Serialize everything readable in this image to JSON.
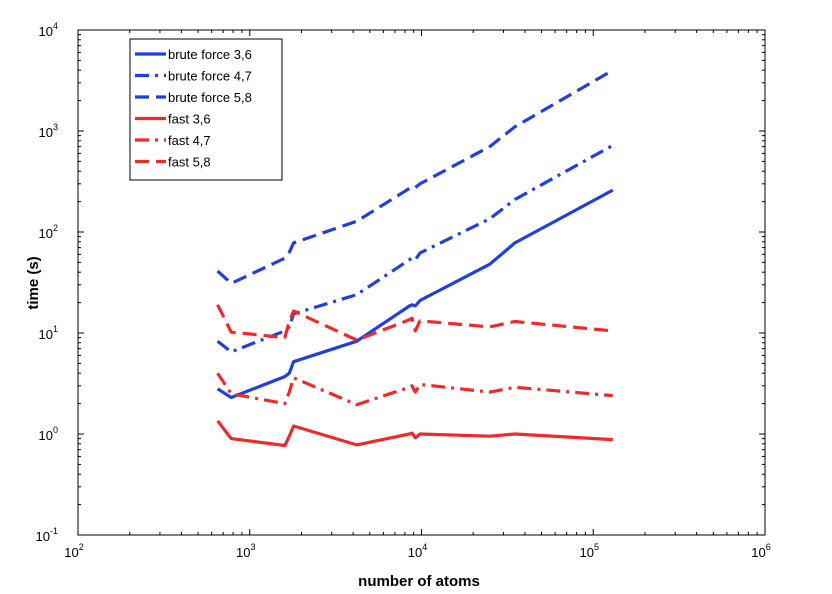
{
  "chart_data": {
    "type": "line",
    "title": "",
    "xlabel": "number of atoms",
    "ylabel": "time (s)",
    "xscale": "log",
    "yscale": "log",
    "xlim": [
      100,
      1000000
    ],
    "ylim": [
      0.1,
      10000
    ],
    "x_ticks": [
      {
        "value": 100,
        "base": "10",
        "exp": "2"
      },
      {
        "value": 1000,
        "base": "10",
        "exp": "3"
      },
      {
        "value": 10000,
        "base": "10",
        "exp": "4"
      },
      {
        "value": 100000,
        "base": "10",
        "exp": "5"
      },
      {
        "value": 1000000,
        "base": "10",
        "exp": "6"
      }
    ],
    "y_ticks": [
      {
        "value": 0.1,
        "base": "10",
        "exp": "-1"
      },
      {
        "value": 1,
        "base": "10",
        "exp": "0"
      },
      {
        "value": 10,
        "base": "10",
        "exp": "1"
      },
      {
        "value": 100,
        "base": "10",
        "exp": "2"
      },
      {
        "value": 1000,
        "base": "10",
        "exp": "3"
      },
      {
        "value": 10000,
        "base": "10",
        "exp": "4"
      }
    ],
    "grid": false,
    "legend_position": "top-left",
    "series": [
      {
        "name": "brute force 3,6",
        "color": "#1f3fe0",
        "dash": "solid",
        "x": [
          650,
          780,
          1600,
          1700,
          1800,
          4200,
          8500,
          8800,
          9200,
          9800,
          25000,
          35000,
          130000
        ],
        "y": [
          2.8,
          2.3,
          3.7,
          4.0,
          5.2,
          8.3,
          18.5,
          19.0,
          18.5,
          21.0,
          48,
          78,
          260
        ]
      },
      {
        "name": "brute force 4,7",
        "color": "#1f3fe0",
        "dash": "dashdot",
        "x": [
          650,
          780,
          1600,
          1700,
          1800,
          4200,
          8500,
          8800,
          9200,
          9800,
          25000,
          35000,
          130000
        ],
        "y": [
          8.3,
          6.5,
          10.5,
          11.5,
          15.5,
          24,
          53,
          55,
          53,
          62,
          135,
          210,
          720
        ]
      },
      {
        "name": "brute force 5,8",
        "color": "#1f3fe0",
        "dash": "dash",
        "x": [
          650,
          780,
          1600,
          1700,
          1800,
          4200,
          8500,
          8800,
          9200,
          9800,
          25000,
          35000,
          130000
        ],
        "y": [
          41,
          31,
          55,
          63,
          78,
          128,
          270,
          282,
          275,
          300,
          700,
          1100,
          4000
        ]
      },
      {
        "name": "fast 3,6",
        "color": "#ee2a2a",
        "dash": "solid",
        "x": [
          650,
          780,
          1600,
          1700,
          1800,
          4200,
          8500,
          8800,
          9200,
          9800,
          25000,
          35000,
          130000
        ],
        "y": [
          1.35,
          0.9,
          0.77,
          0.95,
          1.2,
          0.78,
          1.0,
          1.02,
          0.92,
          1.0,
          0.95,
          1.0,
          0.88
        ]
      },
      {
        "name": "fast 4,7",
        "color": "#ee2a2a",
        "dash": "dashdot",
        "x": [
          650,
          780,
          1600,
          1700,
          1800,
          4200,
          8500,
          8800,
          9200,
          9800,
          25000,
          35000,
          130000
        ],
        "y": [
          4.0,
          2.5,
          2.0,
          2.6,
          3.6,
          1.95,
          2.9,
          3.0,
          2.6,
          3.1,
          2.6,
          2.9,
          2.4
        ]
      },
      {
        "name": "fast 5,8",
        "color": "#ee2a2a",
        "dash": "dash",
        "x": [
          650,
          780,
          1600,
          1700,
          1800,
          4200,
          8500,
          8800,
          9200,
          9800,
          25000,
          35000,
          130000
        ],
        "y": [
          19,
          10.2,
          9.0,
          13,
          16.5,
          8.5,
          13.5,
          14,
          10.5,
          13.2,
          11.5,
          13,
          10.5
        ]
      }
    ]
  }
}
